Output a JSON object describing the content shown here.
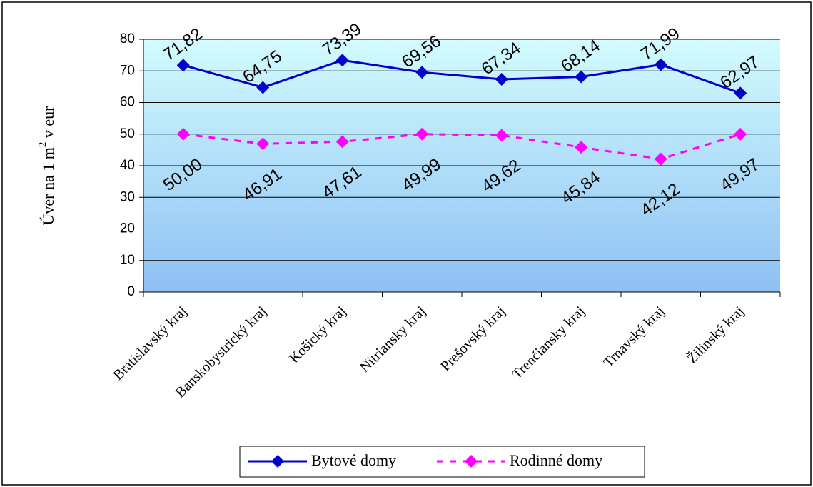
{
  "chart_data": {
    "type": "line",
    "title": "",
    "ylabel": "Úver na 1 m",
    "ylabel_superscript": "2",
    "ylabel_suffix": " v eur",
    "xlabel": "",
    "ylim": [
      0,
      80
    ],
    "yticks": [
      0,
      10,
      20,
      30,
      40,
      50,
      60,
      70,
      80
    ],
    "grid": true,
    "legend_position": "bottom",
    "categories": [
      "Bratislavský kraj",
      "Banskobystrický kraj",
      "Košický kraj",
      "Nitriansky kraj",
      "Prešovský kraj",
      "Trenčiansky kraj",
      "Trnavský kraj",
      "Žilinský kraj"
    ],
    "series": [
      {
        "name": "Bytové domy",
        "color": "#0000CC",
        "line_style": "solid",
        "marker": "diamond",
        "values": [
          71.82,
          64.75,
          73.39,
          69.56,
          67.34,
          68.14,
          71.99,
          62.97
        ],
        "labels": [
          "71,82",
          "64,75",
          "73,39",
          "69,56",
          "67,34",
          "68,14",
          "71,99",
          "62,97"
        ]
      },
      {
        "name": "Rodinné domy",
        "color": "#FF00FF",
        "line_style": "dashed",
        "marker": "diamond",
        "values": [
          50.0,
          46.91,
          47.61,
          49.99,
          49.62,
          45.84,
          42.12,
          49.97
        ],
        "labels": [
          "50,00",
          "46,91",
          "47,61",
          "49,99",
          "49,62",
          "45,84",
          "42,12",
          "49,97"
        ]
      }
    ]
  }
}
